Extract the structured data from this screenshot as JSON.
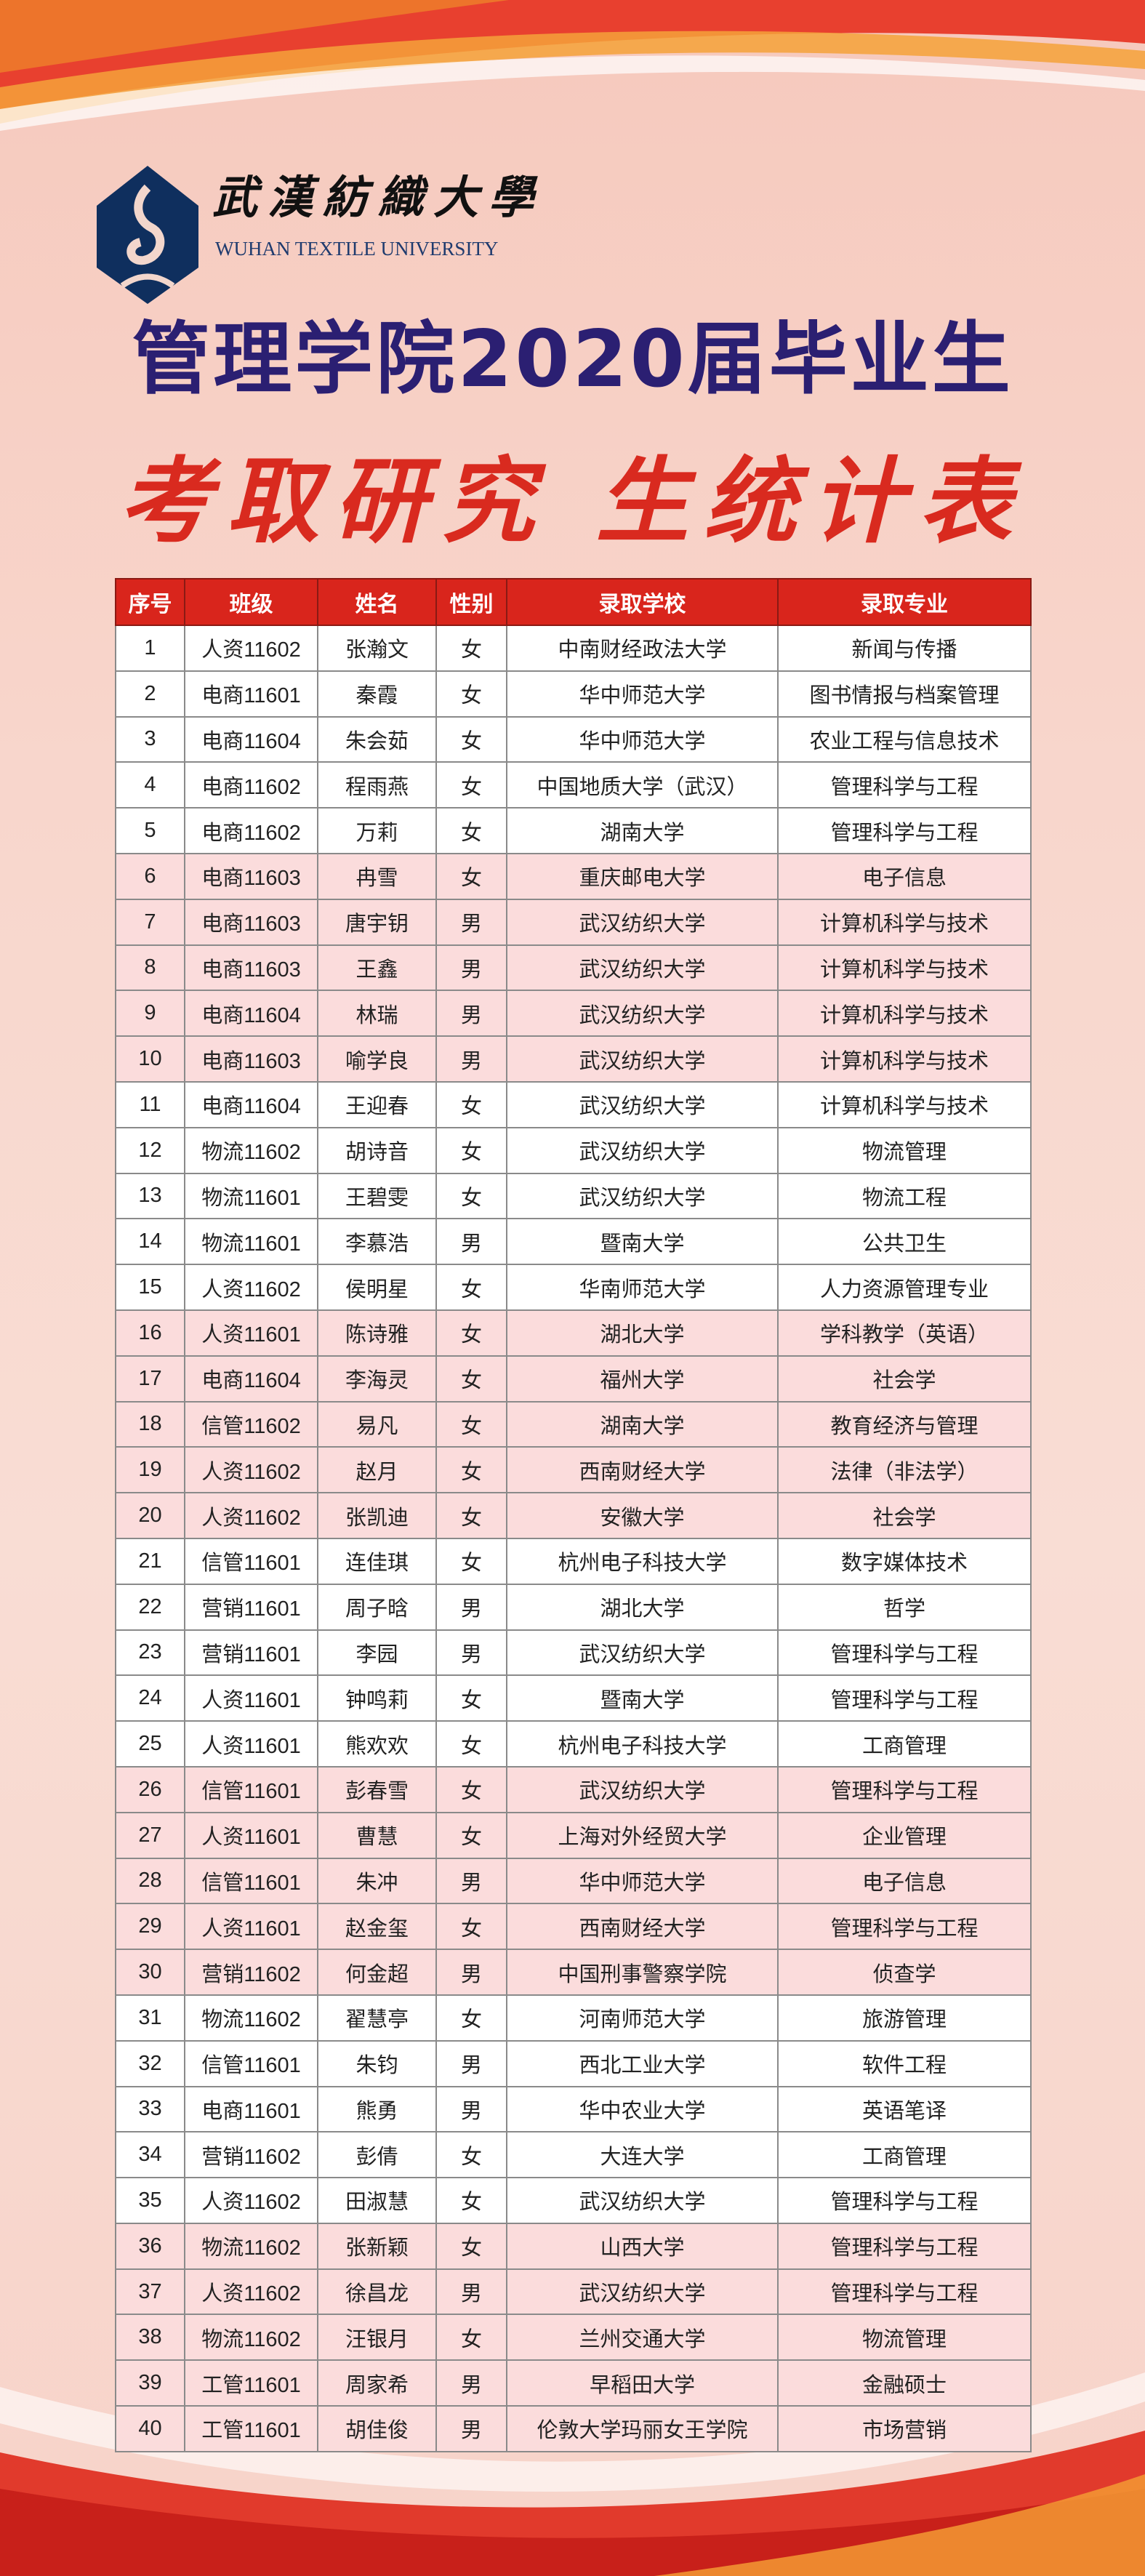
{
  "colors": {
    "header_bg": "#d9251c",
    "title_navy": "#2b1f72",
    "title_red": "#d92a1f",
    "logo_navy": "#0f2f5e",
    "row_pink": "#fbdcdc"
  },
  "logo": {
    "cn": "武漢紡織大學",
    "en": "WUHAN TEXTILE UNIVERSITY",
    "icon": "university-emblem-icon"
  },
  "title": "管理学院2020届毕业生",
  "subtitle": "考取研究 生统计表",
  "table": {
    "headers": [
      "序号",
      "班级",
      "姓名",
      "性别",
      "录取学校",
      "录取专业"
    ],
    "rows": [
      [
        "1",
        "人资11602",
        "张瀚文",
        "女",
        "中南财经政法大学",
        "新闻与传播"
      ],
      [
        "2",
        "电商11601",
        "秦霞",
        "女",
        "华中师范大学",
        "图书情报与档案管理"
      ],
      [
        "3",
        "电商11604",
        "朱会茹",
        "女",
        "华中师范大学",
        "农业工程与信息技术"
      ],
      [
        "4",
        "电商11602",
        "程雨燕",
        "女",
        "中国地质大学（武汉）",
        "管理科学与工程"
      ],
      [
        "5",
        "电商11602",
        "万莉",
        "女",
        "湖南大学",
        "管理科学与工程"
      ],
      [
        "6",
        "电商11603",
        "冉雪",
        "女",
        "重庆邮电大学",
        "电子信息"
      ],
      [
        "7",
        "电商11603",
        "唐宇钥",
        "男",
        "武汉纺织大学",
        "计算机科学与技术"
      ],
      [
        "8",
        "电商11603",
        "王鑫",
        "男",
        "武汉纺织大学",
        "计算机科学与技术"
      ],
      [
        "9",
        "电商11604",
        "林瑞",
        "男",
        "武汉纺织大学",
        "计算机科学与技术"
      ],
      [
        "10",
        "电商11603",
        "喻学良",
        "男",
        "武汉纺织大学",
        "计算机科学与技术"
      ],
      [
        "11",
        "电商11604",
        "王迎春",
        "女",
        "武汉纺织大学",
        "计算机科学与技术"
      ],
      [
        "12",
        "物流11602",
        "胡诗音",
        "女",
        "武汉纺织大学",
        "物流管理"
      ],
      [
        "13",
        "物流11601",
        "王碧雯",
        "女",
        "武汉纺织大学",
        "物流工程"
      ],
      [
        "14",
        "物流11601",
        "李慕浩",
        "男",
        "暨南大学",
        "公共卫生"
      ],
      [
        "15",
        "人资11602",
        "侯明星",
        "女",
        "华南师范大学",
        "人力资源管理专业"
      ],
      [
        "16",
        "人资11601",
        "陈诗雅",
        "女",
        "湖北大学",
        "学科教学（英语）"
      ],
      [
        "17",
        "电商11604",
        "李海灵",
        "女",
        "福州大学",
        "社会学"
      ],
      [
        "18",
        "信管11602",
        "易凡",
        "女",
        "湖南大学",
        "教育经济与管理"
      ],
      [
        "19",
        "人资11602",
        "赵月",
        "女",
        "西南财经大学",
        "法律（非法学）"
      ],
      [
        "20",
        "人资11602",
        "张凯迪",
        "女",
        "安徽大学",
        "社会学"
      ],
      [
        "21",
        "信管11601",
        "连佳琪",
        "女",
        "杭州电子科技大学",
        "数字媒体技术"
      ],
      [
        "22",
        "营销11601",
        "周子晗",
        "男",
        "湖北大学",
        "哲学"
      ],
      [
        "23",
        "营销11601",
        "李园",
        "男",
        "武汉纺织大学",
        "管理科学与工程"
      ],
      [
        "24",
        "人资11601",
        "钟鸣莉",
        "女",
        "暨南大学",
        "管理科学与工程"
      ],
      [
        "25",
        "人资11601",
        "熊欢欢",
        "女",
        "杭州电子科技大学",
        "工商管理"
      ],
      [
        "26",
        "信管11601",
        "彭春雪",
        "女",
        "武汉纺织大学",
        "管理科学与工程"
      ],
      [
        "27",
        "人资11601",
        "曹慧",
        "女",
        "上海对外经贸大学",
        "企业管理"
      ],
      [
        "28",
        "信管11601",
        "朱冲",
        "男",
        "华中师范大学",
        "电子信息"
      ],
      [
        "29",
        "人资11601",
        "赵金玺",
        "女",
        "西南财经大学",
        "管理科学与工程"
      ],
      [
        "30",
        "营销11602",
        "何金超",
        "男",
        "中国刑事警察学院",
        "侦查学"
      ],
      [
        "31",
        "物流11602",
        "翟慧亭",
        "女",
        "河南师范大学",
        "旅游管理"
      ],
      [
        "32",
        "信管11601",
        "朱钧",
        "男",
        "西北工业大学",
        "软件工程"
      ],
      [
        "33",
        "电商11601",
        "熊勇",
        "男",
        "华中农业大学",
        "英语笔译"
      ],
      [
        "34",
        "营销11602",
        "彭倩",
        "女",
        "大连大学",
        "工商管理"
      ],
      [
        "35",
        "人资11602",
        "田淑慧",
        "女",
        "武汉纺织大学",
        "管理科学与工程"
      ],
      [
        "36",
        "物流11602",
        "张新颖",
        "女",
        "山西大学",
        "管理科学与工程"
      ],
      [
        "37",
        "人资11602",
        "徐昌龙",
        "男",
        "武汉纺织大学",
        "管理科学与工程"
      ],
      [
        "38",
        "物流11602",
        "汪银月",
        "女",
        "兰州交通大学",
        "物流管理"
      ],
      [
        "39",
        "工管11601",
        "周家希",
        "男",
        "早稻田大学",
        "金融硕士"
      ],
      [
        "40",
        "工管11601",
        "胡佳俊",
        "男",
        "伦敦大学玛丽女王学院",
        "市场营销"
      ]
    ]
  }
}
